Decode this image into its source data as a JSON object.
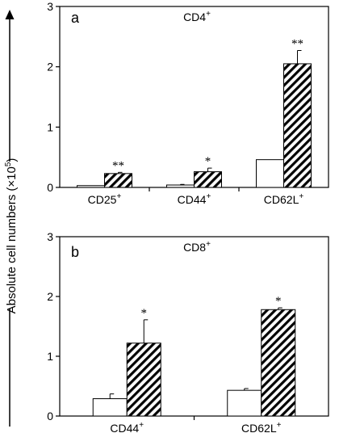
{
  "ylabel": "Absolute cell numbers (×10",
  "ylabel_sup": "5",
  "ylabel_end": ")",
  "chart_data": [
    {
      "type": "bar",
      "panel": "a",
      "title": "CD4",
      "title_sup": "+",
      "ylim": [
        0,
        3
      ],
      "yticks": [
        0,
        1,
        2,
        3
      ],
      "categories": [
        {
          "label": "CD25",
          "sup": "+"
        },
        {
          "label": "CD44",
          "sup": "+"
        },
        {
          "label": "CD62L",
          "sup": "+"
        }
      ],
      "series": [
        {
          "fill": "open",
          "values": [
            0.03,
            0.04,
            0.46
          ],
          "errors": [
            0.0,
            0.01,
            0.0
          ]
        },
        {
          "fill": "hatched",
          "values": [
            0.23,
            0.26,
            2.05
          ],
          "errors": [
            0.02,
            0.06,
            0.22
          ]
        }
      ],
      "significance": [
        "**",
        "*",
        "**"
      ]
    },
    {
      "type": "bar",
      "panel": "b",
      "title": "CD8",
      "title_sup": "+",
      "ylim": [
        0,
        3
      ],
      "yticks": [
        0,
        1,
        2,
        3
      ],
      "categories": [
        {
          "label": "CD44",
          "sup": "+"
        },
        {
          "label": "CD62L",
          "sup": "+"
        }
      ],
      "series": [
        {
          "fill": "open",
          "values": [
            0.29,
            0.43
          ],
          "errors": [
            0.08,
            0.03
          ]
        },
        {
          "fill": "hatched",
          "values": [
            1.22,
            1.78
          ],
          "errors": [
            0.39,
            0.03
          ]
        }
      ],
      "significance": [
        "*",
        "*"
      ]
    }
  ]
}
